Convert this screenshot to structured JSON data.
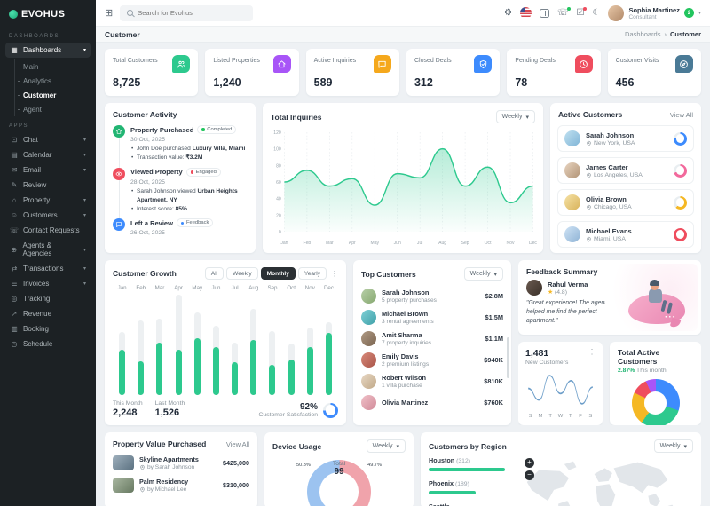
{
  "app": {
    "logo": "EVOHUS"
  },
  "topbar": {
    "search_placeholder": "Search for Evohus",
    "user": {
      "name": "Sophia Martinez",
      "role": "Consultant",
      "badge": "2"
    }
  },
  "breadcrumb": {
    "title": "Customer",
    "root": "Dashboards",
    "sep": "›",
    "current": "Customer"
  },
  "sidebar": {
    "section1": "DASHBOARDS",
    "section2": "APPS",
    "dashboards_label": "Dashboards",
    "dashboard_children": [
      {
        "label": "Main",
        "active": false
      },
      {
        "label": "Analytics",
        "active": false
      },
      {
        "label": "Customer",
        "active": true
      },
      {
        "label": "Agent",
        "active": false
      }
    ],
    "apps_items": [
      {
        "label": "Chat",
        "icon": "chat-icon",
        "glyph": "⊡",
        "chevron": true
      },
      {
        "label": "Calendar",
        "icon": "calendar-icon",
        "glyph": "▤",
        "chevron": true
      },
      {
        "label": "Email",
        "icon": "email-icon",
        "glyph": "✉",
        "chevron": true
      },
      {
        "label": "Review",
        "icon": "review-icon",
        "glyph": "✎",
        "chevron": false
      },
      {
        "label": "Property",
        "icon": "property-icon",
        "glyph": "⌂",
        "chevron": true
      },
      {
        "label": "Customers",
        "icon": "customers-icon",
        "glyph": "☺",
        "chevron": true
      },
      {
        "label": "Contact Requests",
        "icon": "contact-requests-icon",
        "glyph": "☏",
        "chevron": false
      },
      {
        "label": "Agents & Agencies",
        "icon": "agents-icon",
        "glyph": "⊕",
        "chevron": true
      },
      {
        "label": "Transactions",
        "icon": "transactions-icon",
        "glyph": "⇄",
        "chevron": true
      },
      {
        "label": "Invoices",
        "icon": "invoices-icon",
        "glyph": "☰",
        "chevron": true
      },
      {
        "label": "Tracking",
        "icon": "tracking-icon",
        "glyph": "◎",
        "chevron": false
      },
      {
        "label": "Revenue",
        "icon": "revenue-icon",
        "glyph": "↗",
        "chevron": false
      },
      {
        "label": "Booking",
        "icon": "booking-icon",
        "glyph": "▥",
        "chevron": false
      },
      {
        "label": "Schedule",
        "icon": "schedule-icon",
        "glyph": "◷",
        "chevron": false
      }
    ]
  },
  "stats": [
    {
      "label": "Total Customers",
      "value": "8,725",
      "color": "#2DC98E",
      "icon": "users-icon"
    },
    {
      "label": "Listed Properties",
      "value": "1,240",
      "color": "#A855F7",
      "icon": "home-icon"
    },
    {
      "label": "Active Inquiries",
      "value": "589",
      "color": "#F5A81C",
      "icon": "chat-bubble-icon"
    },
    {
      "label": "Closed Deals",
      "value": "312",
      "color": "#3D8BFD",
      "icon": "shield-check-icon"
    },
    {
      "label": "Pending Deals",
      "value": "78",
      "color": "#EF4D5E",
      "icon": "clock-icon"
    },
    {
      "label": "Customer Visits",
      "value": "456",
      "color": "#4A7A96",
      "icon": "compass-icon"
    }
  ],
  "activity": {
    "title": "Customer Activity",
    "items": [
      {
        "title": "Property Purchased",
        "tag": "Completed",
        "tag_color": "#22c55e",
        "icon": "home-icon",
        "icon_color": "#22b573",
        "date": "30 Oct, 2025",
        "bullets": [
          [
            "John Doe purchased ",
            "Luxury Villa, Miami"
          ],
          [
            "Transaction value: ",
            "₹3.2M"
          ]
        ]
      },
      {
        "title": "Viewed Property",
        "tag": "Engaged",
        "tag_color": "#ef4d5e",
        "icon": "eye-icon",
        "icon_color": "#ef4d5e",
        "date": "28 Oct, 2025",
        "bullets": [
          [
            "Sarah Johnson viewed ",
            "Urban Heights Apartment, NY"
          ],
          [
            "Interest score: ",
            "85%"
          ]
        ]
      },
      {
        "title": "Left a Review",
        "tag": "Feedback",
        "tag_color": "#3d8bfd",
        "icon": "chat-bubble-icon",
        "icon_color": "#3d8bfd",
        "date": "26 Oct, 2025",
        "bullets": []
      }
    ]
  },
  "active_customers": {
    "title": "Active Customers",
    "view_all": "View All",
    "items": [
      {
        "name": "Sarah Johnson",
        "location": "New York, USA",
        "ring_color": "#3d8bfd",
        "ring_pct": 76,
        "avatar_bg": "linear-gradient(135deg,#bfe0f0,#7fb4d6)"
      },
      {
        "name": "James Carter",
        "location": "Los Angeles, USA",
        "ring_color": "#f2699c",
        "ring_pct": 70,
        "avatar_bg": "linear-gradient(135deg,#e8d4c0,#b09274)"
      },
      {
        "name": "Olivia Brown",
        "location": "Chicago, USA",
        "ring_color": "#f5b824",
        "ring_pct": 62,
        "avatar_bg": "linear-gradient(135deg,#f5e1a4,#d8b25a)"
      },
      {
        "name": "Michael Evans",
        "location": "Miami, USA",
        "ring_color": "#ef4d5e",
        "ring_pct": 100,
        "avatar_bg": "linear-gradient(135deg,#cfe3f5,#8fb3d5)"
      }
    ]
  },
  "growth": {
    "title": "Customer Growth",
    "tabs": [
      "All",
      "Weekly",
      "Monthly",
      "Yearly"
    ],
    "active_tab": "Monthly",
    "this_month_label": "This Month",
    "this_month": "2,248",
    "last_month_label": "Last Month",
    "last_month": "1,526",
    "satisfaction": "92%",
    "satisfaction_label": "Customer Satisfaction",
    "satisfaction_pct": 75
  },
  "top_customers": {
    "title": "Top Customers",
    "filter": "Weekly",
    "items": [
      {
        "name": "Sarah Johnson",
        "desc": "5 property purchases",
        "amount": "$2.8M",
        "avatar_bg": "linear-gradient(135deg,#b8cfa8,#86a870)"
      },
      {
        "name": "Michael Brown",
        "desc": "3 rental agreements",
        "amount": "$1.5M",
        "avatar_bg": "linear-gradient(135deg,#7fd0d6,#3fa0a8)"
      },
      {
        "name": "Amit Sharma",
        "desc": "7 property inquiries",
        "amount": "$1.1M",
        "avatar_bg": "linear-gradient(135deg,#b09a84,#7a6450)"
      },
      {
        "name": "Emily Davis",
        "desc": "2 premium listings",
        "amount": "$940K",
        "avatar_bg": "linear-gradient(135deg,#d98a7a,#a85448)"
      },
      {
        "name": "Robert Wilson",
        "desc": "1 villa purchase",
        "amount": "$810K",
        "avatar_bg": "linear-gradient(135deg,#e8d8c4,#c0a888)"
      },
      {
        "name": "Olivia Martinez",
        "desc": "",
        "amount": "$760K",
        "avatar_bg": "linear-gradient(135deg,#f0c0c8,#d08a98)"
      }
    ]
  },
  "feedback": {
    "title": "Feedback Summary",
    "name": "Rahul Verma",
    "star": "★",
    "rating": "(4.8)",
    "quote": "\"Great experience! The agent helped me find the perfect apartment.\"",
    "avatar_bg": "linear-gradient(135deg,#6a5a50,#3a3028)"
  },
  "new_customers_card": {
    "value": "1,481",
    "label": "New Customers"
  },
  "total_active_card": {
    "title": "Total Active Customers",
    "pct": "2.87%",
    "pct_rest": " This month"
  },
  "property_value": {
    "title": "Property Value Purchased",
    "view_all": "View All",
    "items": [
      {
        "name": "Skyline Apartments",
        "by": "by Sarah Johnson",
        "price": "$425,000",
        "thumb": "linear-gradient(135deg,#9fb0bd,#5a7080)"
      },
      {
        "name": "Palm Residency",
        "by": "by Michael Lee",
        "price": "$310,000",
        "thumb": "linear-gradient(135deg,#aab8a2,#667860)"
      }
    ]
  },
  "device_usage": {
    "title": "Device Usage",
    "filter": "Weekly",
    "center_label": "Total",
    "center_value": "99",
    "left_pct": "50.3%",
    "right_pct": "49.7%"
  },
  "region": {
    "title": "Customers by Region",
    "filter": "Weekly",
    "items": [
      {
        "city": "Houston",
        "count": "(312)",
        "pct": 100
      },
      {
        "city": "Phoenix",
        "count": "(189)",
        "pct": 61
      },
      {
        "city": "Seattle",
        "count": "",
        "pct": 48
      }
    ]
  },
  "chart_data": [
    {
      "id": "total_inquiries",
      "type": "area",
      "title": "Total Inquiries",
      "filter": "Weekly",
      "x": [
        "Jan",
        "Feb",
        "Mar",
        "Apr",
        "May",
        "Jun",
        "Jul",
        "Aug",
        "Sep",
        "Oct",
        "Nov",
        "Dec"
      ],
      "values": [
        60,
        74,
        55,
        64,
        32,
        70,
        65,
        100,
        55,
        78,
        35,
        55
      ],
      "ylim": [
        0,
        120
      ],
      "yticks": [
        0,
        20,
        40,
        60,
        80,
        100,
        120
      ],
      "color": "#2dc98e",
      "grid": "vertical-dashed",
      "legend": "none"
    },
    {
      "id": "customer_growth",
      "type": "bar",
      "title": "Customer Growth",
      "categories": [
        "Jan",
        "Feb",
        "Mar",
        "Apr",
        "May",
        "Jun",
        "Jul",
        "Aug",
        "Sep",
        "Oct",
        "Nov",
        "Dec"
      ],
      "series": [
        {
          "name": "target_total_pct",
          "values": [
            63,
            74,
            76,
            100,
            82,
            69,
            52,
            86,
            64,
            51,
            67,
            73
          ]
        },
        {
          "name": "achieved_pct",
          "values": [
            45,
            34,
            52,
            45,
            57,
            48,
            33,
            55,
            30,
            35,
            48,
            62
          ]
        }
      ],
      "ylim": [
        0,
        100
      ],
      "colors": [
        "#edf0f2",
        "#2dc98e"
      ],
      "legend": "none"
    },
    {
      "id": "new_customers_trend",
      "type": "line",
      "title": "New Customers",
      "x": [
        "S",
        "M",
        "T",
        "W",
        "T",
        "F",
        "S"
      ],
      "values": [
        16,
        7,
        26,
        12,
        22,
        4,
        17
      ],
      "ylim": [
        0,
        30
      ],
      "color": "#6d9ec9",
      "grid": "off"
    },
    {
      "id": "total_active_customers",
      "type": "pie",
      "title": "Total Active Customers",
      "segments": [
        {
          "label": "purple",
          "value": 7,
          "color": "#a855f7"
        },
        {
          "label": "blue",
          "value": 30,
          "color": "#3d8bfd"
        },
        {
          "label": "green",
          "value": 30,
          "color": "#2dc98e"
        },
        {
          "label": "yellow",
          "value": 22,
          "color": "#f5b824"
        },
        {
          "label": "red",
          "value": 11,
          "color": "#ef4d5e"
        }
      ]
    },
    {
      "id": "device_usage",
      "type": "pie",
      "title": "Device Usage",
      "center_label": "Total",
      "center_value": "99",
      "segments": [
        {
          "label": "left",
          "value": 50.3,
          "color": "#9cc3f0"
        },
        {
          "label": "right",
          "value": 49.7,
          "color": "#f0a3ab"
        }
      ]
    },
    {
      "id": "customers_by_region",
      "type": "bar",
      "title": "Customers by Region",
      "categories": [
        "Houston",
        "Phoenix",
        "Seattle"
      ],
      "values": [
        312,
        189,
        null
      ]
    }
  ]
}
